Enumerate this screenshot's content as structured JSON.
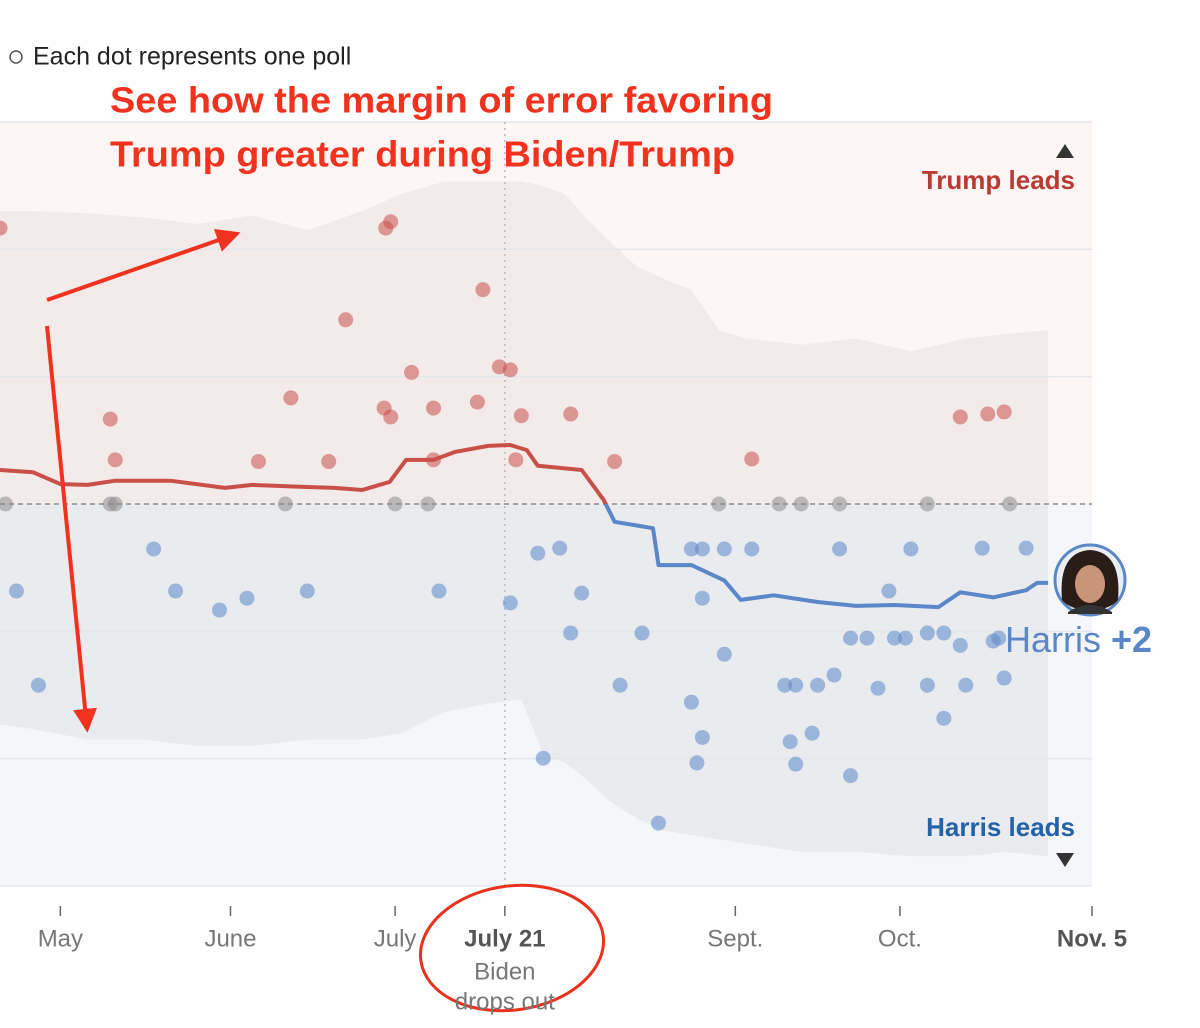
{
  "chart_data": {
    "type": "poll-average",
    "legend_text": "Each dot represents one poll",
    "annotation": [
      "See how the margin of error favoring",
      "Trump greater during Biden/Trump"
    ],
    "top_label": "Trump leads",
    "bottom_label": "Harris leads",
    "end_label": {
      "name": "Harris",
      "lead": "+2"
    },
    "event": {
      "x": 81,
      "label": [
        "Biden",
        "drops out"
      ]
    },
    "trump_color": "#c9504a",
    "harris_color": "#5b86c8",
    "tie_color": "#8c8c8c",
    "xlim": [
      -11,
      188
    ],
    "ylim": [
      -9,
      9
    ],
    "yticks": [
      -9,
      -6,
      -3,
      0,
      3,
      6,
      9
    ],
    "xticks": [
      {
        "value": 0,
        "label": "May"
      },
      {
        "value": 31,
        "label": "June"
      },
      {
        "value": 61,
        "label": "July"
      },
      {
        "value": 81,
        "label": "July 21",
        "emphasis": true
      },
      {
        "value": 123,
        "label": "Sept."
      },
      {
        "value": 153,
        "label": "Oct."
      },
      {
        "value": 188,
        "label": "Nov. 5",
        "emphasis": true
      }
    ],
    "grid": true,
    "band": {
      "x": [
        -11,
        -5,
        5,
        15,
        25,
        35,
        45,
        55,
        62,
        70,
        78,
        84,
        88,
        92,
        96,
        100,
        105,
        110,
        115,
        120,
        125,
        135,
        145,
        155,
        165,
        172,
        180
      ],
      "upper": [
        6.9,
        6.9,
        6.85,
        6.75,
        6.6,
        6.8,
        6.45,
        6.9,
        7.3,
        7.6,
        7.6,
        7.6,
        7.5,
        7.3,
        6.7,
        6.2,
        5.6,
        5.3,
        5.05,
        4.1,
        3.9,
        3.75,
        3.9,
        3.6,
        3.9,
        4.0,
        4.1
      ],
      "lower": [
        -5.2,
        -5.3,
        -5.55,
        -5.55,
        -5.7,
        -5.7,
        -5.55,
        -5.55,
        -5.4,
        -4.9,
        -4.7,
        -4.6,
        -5.9,
        -6.1,
        -6.5,
        -7.0,
        -7.4,
        -7.7,
        -7.8,
        -7.9,
        -8.0,
        -8.2,
        -8.2,
        -8.3,
        -8.3,
        -8.2,
        -8.3
      ]
    },
    "trend": {
      "x": [
        -11,
        -5,
        0,
        5,
        10,
        20,
        30,
        35,
        45,
        50,
        55,
        60,
        63,
        68,
        72,
        78,
        82,
        85,
        87,
        95,
        99,
        101,
        108,
        109,
        115,
        121,
        124,
        130,
        138,
        145,
        152,
        160,
        164,
        170,
        176,
        178,
        180
      ],
      "values": [
        0.8,
        0.75,
        0.47,
        0.45,
        0.55,
        0.55,
        0.38,
        0.45,
        0.4,
        0.38,
        0.33,
        0.52,
        1.04,
        1.04,
        1.23,
        1.37,
        1.39,
        1.27,
        0.9,
        0.8,
        0.1,
        -0.42,
        -0.57,
        -1.44,
        -1.44,
        -1.8,
        -2.26,
        -2.15,
        -2.31,
        -2.4,
        -2.38,
        -2.43,
        -2.08,
        -2.2,
        -2.03,
        -1.86,
        -1.86
      ]
    },
    "polls": {
      "x": [
        -11,
        9.1,
        10,
        36.1,
        42,
        48.9,
        52,
        59.3,
        60.2,
        59,
        60.2,
        64,
        68,
        68,
        76,
        77,
        80,
        82,
        83,
        84,
        93,
        101,
        126,
        164,
        169,
        172,
        -10,
        9.1,
        10,
        41,
        61,
        67,
        120,
        131,
        135,
        142,
        158,
        173,
        -8,
        -4,
        17,
        21,
        29,
        34,
        45,
        69,
        82,
        87,
        88,
        91,
        93,
        95,
        102,
        106,
        109,
        115,
        117,
        115,
        116,
        117,
        117,
        121,
        121,
        126,
        132,
        133,
        134,
        134,
        137,
        138,
        141,
        142,
        144,
        144,
        147,
        149,
        151,
        152,
        154,
        155,
        158,
        158,
        161,
        161,
        164,
        165,
        168,
        170,
        172,
        176,
        171
      ],
      "values": [
        6.5,
        2.0,
        1.04,
        1.0,
        2.5,
        1.0,
        4.34,
        6.5,
        6.65,
        2.26,
        2.05,
        3.1,
        2.26,
        1.04,
        2.4,
        5.05,
        3.23,
        3.16,
        1.04,
        2.08,
        2.12,
        1.0,
        1.06,
        2.05,
        2.12,
        2.17,
        0,
        0,
        0,
        0,
        0,
        0,
        0,
        0,
        0,
        0,
        0,
        0,
        -2.05,
        -4.27,
        -1.06,
        -2.05,
        -2.5,
        -2.22,
        -2.05,
        -2.05,
        -2.33,
        -1.16,
        -5.99,
        -1.04,
        -3.04,
        -2.1,
        -4.27,
        -3.04,
        -7.52,
        -1.06,
        -1.06,
        -4.67,
        -6.1,
        -5.5,
        -2.22,
        -3.54,
        -1.06,
        -1.06,
        -4.27,
        -5.6,
        -4.27,
        -6.13,
        -5.4,
        -4.27,
        -4.03,
        -1.06,
        -6.4,
        -3.16,
        -3.16,
        -4.34,
        -2.05,
        -3.16,
        -3.16,
        -1.06,
        -4.27,
        -3.04,
        -5.05,
        -3.04,
        -3.33,
        -4.27,
        -1.04,
        -3.23,
        -4.1,
        -1.04,
        -3.16
      ]
    }
  }
}
